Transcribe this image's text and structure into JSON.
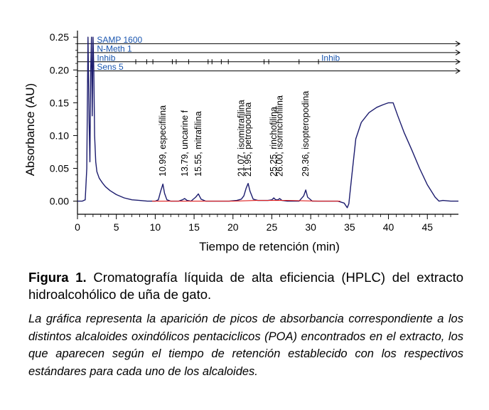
{
  "chart_data": {
    "type": "line",
    "xlabel": "Tiempo de retención (min)",
    "ylabel": "Absorbance (AU)",
    "xlim": [
      0,
      49
    ],
    "ylim": [
      -0.02,
      0.26
    ],
    "x_ticks": [
      "0",
      "5",
      "10",
      "15",
      "20",
      "25",
      "30",
      "35",
      "40",
      "45"
    ],
    "y_ticks": [
      "0.00",
      "0.05",
      "0.10",
      "0.15",
      "0.20",
      "0.25"
    ],
    "x_tick_values": [
      0,
      5,
      10,
      15,
      20,
      25,
      30,
      35,
      40,
      45
    ],
    "y_tick_values": [
      0,
      0.05,
      0.1,
      0.15,
      0.2,
      0.25
    ],
    "series": [
      {
        "color": "#1c1c6e",
        "x": [
          0,
          0.6,
          1.0,
          1.2,
          1.35,
          1.5,
          1.6,
          1.7,
          1.8,
          1.9,
          2.0,
          2.1,
          2.2,
          2.35,
          2.5,
          2.8,
          3.2,
          3.6,
          4.2,
          5,
          6,
          7,
          8,
          9,
          10,
          10.4,
          10.7,
          10.99,
          11.2,
          11.5,
          12,
          13,
          13.5,
          13.79,
          14.1,
          14.6,
          15.2,
          15.55,
          15.9,
          16.5,
          18,
          19.5,
          20.5,
          21.07,
          21.4,
          21.7,
          21.95,
          22.2,
          22.6,
          23.2,
          24.5,
          25.0,
          25.25,
          25.5,
          25.8,
          26.0,
          26.3,
          27,
          28.5,
          29.1,
          29.36,
          29.6,
          30.2,
          32,
          33.5,
          34.3,
          34.7,
          34.9,
          35.3,
          35.8,
          36.5,
          37.5,
          38.5,
          39.3,
          40.0,
          40.6,
          41.2,
          42,
          43,
          44,
          45,
          46,
          46.5,
          47,
          48,
          49
        ],
        "y": [
          0,
          0,
          0.002,
          0.05,
          0.25,
          0.12,
          0.06,
          0.2,
          0.25,
          0.13,
          0.25,
          0.2,
          0.1,
          0.06,
          0.045,
          0.035,
          0.028,
          0.022,
          0.016,
          0.01,
          0.005,
          0.002,
          0.001,
          0,
          0,
          0.002,
          0.015,
          0.026,
          0.012,
          0.002,
          0,
          0,
          0.002,
          0.004,
          0.001,
          0,
          0.006,
          0.011,
          0.003,
          0,
          0,
          0,
          0.001,
          0.003,
          0.008,
          0.02,
          0.027,
          0.015,
          0.003,
          0.001,
          0.001,
          0.002,
          0.005,
          0.002,
          0.002,
          0.004,
          0.001,
          0,
          0,
          0.008,
          0.017,
          0.006,
          0,
          0,
          0,
          -0.003,
          -0.01,
          -0.004,
          0.04,
          0.095,
          0.12,
          0.135,
          0.143,
          0.147,
          0.15,
          0.15,
          0.13,
          0.105,
          0.078,
          0.05,
          0.025,
          0.006,
          0,
          0.001,
          0,
          0
        ]
      },
      {
        "color": "#e02020",
        "x": [
          9.6,
          12,
          13,
          20,
          23,
          27,
          31,
          33.8
        ],
        "y": [
          0,
          0,
          0,
          0,
          0.001,
          0.001,
          0,
          0
        ]
      }
    ],
    "peak_labels": [
      {
        "x": 10.99,
        "label": "10.99, especifilina"
      },
      {
        "x": 13.79,
        "label": "13.79, uncarine f"
      },
      {
        "x": 15.55,
        "label": "15.55, mitrafilina"
      },
      {
        "x": 21.07,
        "label": "21.07, isomitrafilina"
      },
      {
        "x": 21.95,
        "label": "21.95, petropodina"
      },
      {
        "x": 25.25,
        "label": "25.25, rinchofilina"
      },
      {
        "x": 26.0,
        "label": "26.00, isorinchofilina"
      },
      {
        "x": 29.36,
        "label": "29.36, isopteropodina"
      }
    ],
    "event_lines": [
      {
        "name": "SAMP 1600",
        "text_x": 2.5,
        "ticks": []
      },
      {
        "name": "N-Meth 1",
        "text_x": 2.5,
        "ticks": []
      },
      {
        "name": "Inhib",
        "text_x": 2.5,
        "ticks": [
          7.5,
          8.9,
          9.7,
          12.2,
          12.7,
          14.3,
          16.8,
          17.3,
          18.5,
          19.4,
          24.0,
          24.6,
          28.5,
          31.0
        ],
        "extra_labels": [
          {
            "text": "Inhib",
            "x": 31.0
          }
        ]
      },
      {
        "name": "Sens 5",
        "text_x": 2.5,
        "ticks": []
      }
    ]
  },
  "caption": {
    "title_lead": "Figura 1.",
    "title_rest": " Cromatografía líquida de alta eficiencia (HPLC) del extracto hidroalcohólico de uña de gato.",
    "description": "La gráfica representa la aparición de picos de absorbancia correspondiente a los distintos alcaloides oxindólicos pentaciclicos (POA) encontrados en el extracto, los que aparecen según el tiempo de retención establecido con los respectivos estándares para cada uno de los alcaloides."
  }
}
